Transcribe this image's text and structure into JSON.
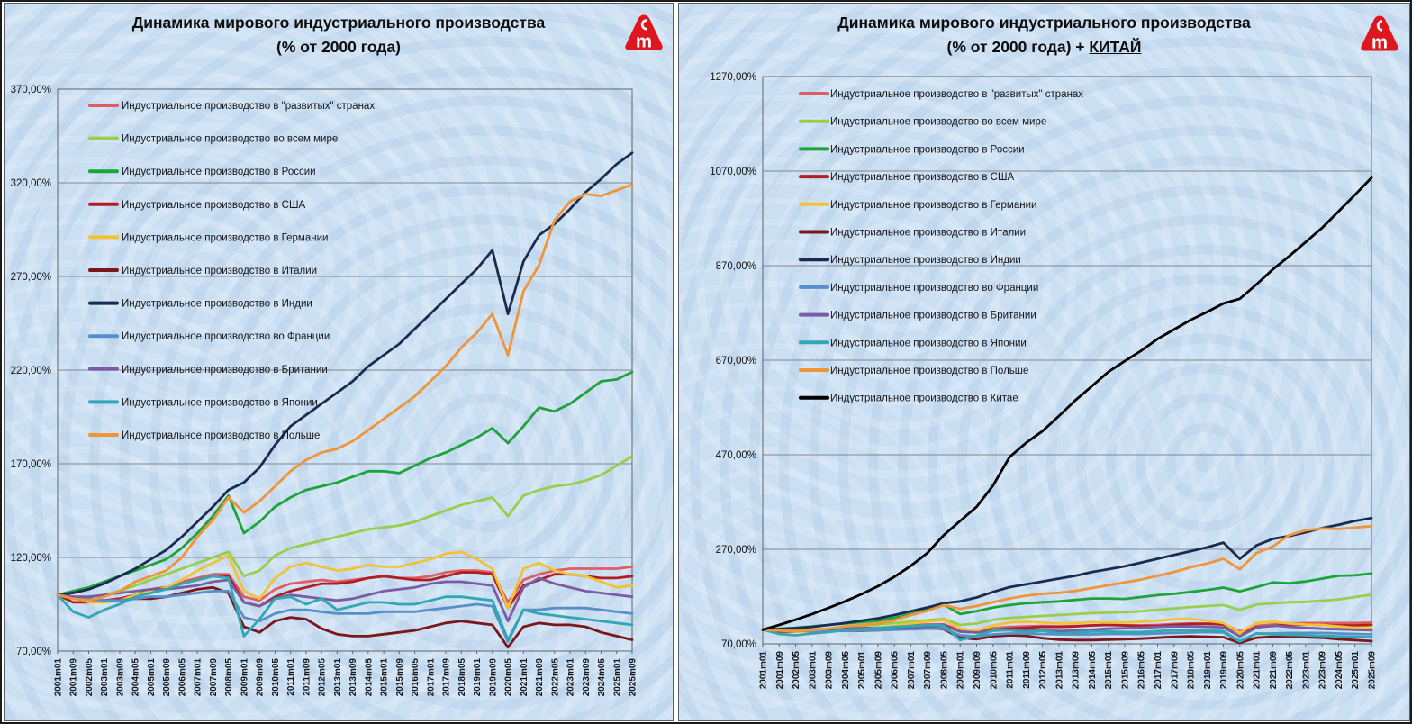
{
  "logo": {
    "color": "#e0161f",
    "letter": "m"
  },
  "chart_data": {
    "type": "line",
    "x_categories": [
      "2001m01",
      "2001m09",
      "2002m05",
      "2003m01",
      "2003m09",
      "2004m05",
      "2005m01",
      "2005m09",
      "2006m05",
      "2007m01",
      "2007m09",
      "2008m05",
      "2009m01",
      "2009m09",
      "2010m05",
      "2011m01",
      "2011m09",
      "2012m05",
      "2013m01",
      "2013m09",
      "2014m05",
      "2015m01",
      "2015m09",
      "2016m05",
      "2017m01",
      "2017m09",
      "2018m05",
      "2019m01",
      "2019m09",
      "2020m05",
      "2021m01",
      "2021m09",
      "2022m05",
      "2023m01",
      "2023m09",
      "2024m05",
      "2025m01",
      "2025m09"
    ],
    "series": {
      "developed": {
        "label": "Индустриальное производство в \"развитых\" странах",
        "color": "#df5c63",
        "values": [
          100,
          98,
          97,
          97,
          98,
          100,
          102,
          104,
          107,
          109,
          111,
          111,
          99,
          97,
          103,
          106,
          107,
          108,
          107,
          108,
          109,
          110,
          109,
          109,
          110,
          112,
          113,
          113,
          112,
          96,
          108,
          111,
          113,
          114,
          114,
          114,
          114,
          115
        ]
      },
      "world": {
        "label": "Индустриальное производство во всем мире",
        "color": "#97ce4a",
        "values": [
          100,
          99,
          99,
          100,
          102,
          105,
          108,
          111,
          114,
          117,
          120,
          123,
          110,
          113,
          121,
          125,
          127,
          129,
          131,
          133,
          135,
          136,
          137,
          139,
          142,
          145,
          148,
          150,
          152,
          142,
          153,
          156,
          158,
          159,
          161,
          164,
          169,
          174
        ]
      },
      "russia": {
        "label": "Индустриальное производство в России",
        "color": "#1ca339",
        "values": [
          100,
          102,
          104,
          107,
          110,
          113,
          116,
          119,
          125,
          133,
          142,
          153,
          133,
          139,
          147,
          152,
          156,
          158,
          160,
          163,
          166,
          166,
          165,
          169,
          173,
          176,
          180,
          184,
          189,
          181,
          190,
          200,
          198,
          202,
          208,
          214,
          215,
          219
        ]
      },
      "usa": {
        "label": "Индустриальное производство в США",
        "color": "#b01e24",
        "values": [
          100,
          96,
          96,
          97,
          98,
          100,
          103,
          104,
          106,
          108,
          110,
          110,
          96,
          94,
          99,
          102,
          104,
          106,
          106,
          107,
          109,
          110,
          109,
          108,
          108,
          110,
          112,
          112,
          111,
          93,
          105,
          108,
          111,
          111,
          110,
          109,
          109,
          110
        ]
      },
      "germany": {
        "label": "Индустриальное производство в Германии",
        "color": "#f2c231",
        "values": [
          100,
          99,
          96,
          96,
          97,
          100,
          102,
          104,
          108,
          113,
          117,
          121,
          102,
          98,
          109,
          115,
          117,
          115,
          113,
          114,
          116,
          115,
          115,
          117,
          119,
          122,
          123,
          119,
          114,
          93,
          114,
          117,
          113,
          111,
          110,
          107,
          104,
          105
        ]
      },
      "italy": {
        "label": "Индустриальное производство в Италии",
        "color": "#7a161c",
        "values": [
          100,
          99,
          98,
          97,
          97,
          98,
          98,
          99,
          101,
          103,
          104,
          101,
          83,
          80,
          86,
          88,
          87,
          82,
          79,
          78,
          78,
          79,
          80,
          81,
          83,
          85,
          86,
          85,
          84,
          72,
          83,
          85,
          84,
          84,
          83,
          80,
          78,
          76
        ]
      },
      "india": {
        "label": "Индустриальное производство в Индии",
        "color": "#1b2b50",
        "values": [
          100,
          101,
          103,
          106,
          110,
          114,
          119,
          124,
          131,
          139,
          147,
          156,
          160,
          168,
          180,
          190,
          196,
          202,
          208,
          214,
          222,
          228,
          234,
          242,
          250,
          258,
          266,
          274,
          284,
          250,
          278,
          292,
          298,
          306,
          315,
          322,
          330,
          336
        ]
      },
      "france": {
        "label": "Индустриальное производство во Франции",
        "color": "#5590c8",
        "values": [
          100,
          99,
          98,
          97,
          97,
          98,
          99,
          99,
          100,
          101,
          102,
          102,
          88,
          86,
          90,
          92,
          92,
          91,
          90,
          90,
          90,
          91,
          91,
          91,
          92,
          93,
          94,
          95,
          94,
          75,
          92,
          92,
          93,
          93,
          93,
          92,
          91,
          90
        ]
      },
      "britain": {
        "label": "Индустриальное производство в Британии",
        "color": "#7b5ca2",
        "values": [
          100,
          99,
          99,
          100,
          101,
          102,
          103,
          103,
          104,
          105,
          107,
          108,
          96,
          94,
          98,
          100,
          99,
          98,
          97,
          98,
          100,
          102,
          103,
          104,
          106,
          107,
          107,
          106,
          105,
          86,
          104,
          109,
          106,
          104,
          102,
          101,
          100,
          99
        ]
      },
      "japan": {
        "label": "Индустриальное производство в Японии",
        "color": "#2fa8b4",
        "values": [
          100,
          91,
          88,
          92,
          95,
          99,
          101,
          103,
          106,
          108,
          110,
          109,
          78,
          87,
          98,
          99,
          95,
          98,
          92,
          94,
          96,
          96,
          95,
          95,
          97,
          99,
          99,
          98,
          97,
          76,
          92,
          90,
          89,
          88,
          87,
          86,
          85,
          84
        ]
      },
      "poland": {
        "label": "Индустриальное производство в Польше",
        "color": "#f09437",
        "values": [
          100,
          98,
          97,
          99,
          102,
          107,
          110,
          113,
          120,
          131,
          140,
          152,
          144,
          150,
          158,
          166,
          172,
          176,
          178,
          182,
          188,
          194,
          200,
          206,
          214,
          222,
          232,
          240,
          250,
          228,
          262,
          276,
          300,
          310,
          314,
          313,
          316,
          319
        ]
      },
      "china": {
        "label": "Индустриальное производство в Китае",
        "color": "#000000",
        "values": [
          100,
          110,
          121,
          133,
          146,
          160,
          175,
          192,
          212,
          235,
          262,
          300,
          330,
          360,
          405,
          465,
          495,
          520,
          552,
          585,
          615,
          645,
          668,
          690,
          715,
          735,
          755,
          772,
          790,
          800,
          830,
          862,
          890,
          920,
          950,
          985,
          1020,
          1056
        ]
      }
    },
    "charts": [
      {
        "title_line1": "Динамика мирового индустриального производства",
        "title_line2": "(% от 2000 года)",
        "y_ticks": [
          "370,00%",
          "320,00%",
          "270,00%",
          "220,00%",
          "170,00%",
          "120,00%",
          "70,00%"
        ],
        "y_min": 70,
        "y_max": 370,
        "grid": "horizontal",
        "legend_position": "overlay-top-left",
        "series_order": [
          "developed",
          "world",
          "russia",
          "usa",
          "germany",
          "italy",
          "india",
          "france",
          "britain",
          "japan",
          "poland"
        ]
      },
      {
        "title_line1": "Динамика мирового индустриального производства",
        "title_line2_prefix": "(% от 2000 года) + ",
        "title_line2_emphasis": "КИТАЙ",
        "y_ticks": [
          "1270,00%",
          "1070,00%",
          "870,00%",
          "670,00%",
          "470,00%",
          "270,00%",
          "70,00%"
        ],
        "y_min": 70,
        "y_max": 1270,
        "grid": "horizontal",
        "legend_position": "overlay-top-left",
        "series_order": [
          "developed",
          "world",
          "russia",
          "usa",
          "germany",
          "italy",
          "india",
          "france",
          "britain",
          "japan",
          "poland",
          "china"
        ]
      }
    ]
  }
}
